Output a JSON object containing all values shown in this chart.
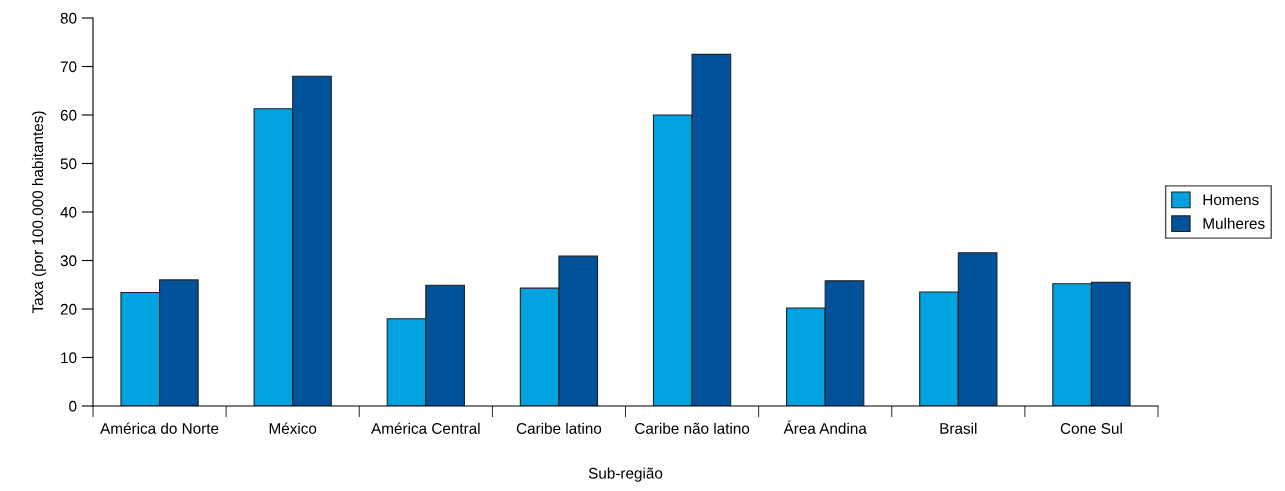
{
  "chart_data": {
    "type": "bar",
    "xlabel": "Sub-região",
    "ylabel": "Taxa (por 100.000 habitantes)",
    "categories": [
      "América do Norte",
      "México",
      "América Central",
      "Caribe latino",
      "Caribe não latino",
      "Área Andina",
      "Brasil",
      "Cone Sul"
    ],
    "series": [
      {
        "name": "Homens",
        "color": "#00a3e0",
        "values": [
          23.4,
          61.3,
          18.0,
          24.3,
          60.0,
          20.2,
          23.5,
          25.2
        ]
      },
      {
        "name": "Mulheres",
        "color": "#00529b",
        "values": [
          26.0,
          68.0,
          24.9,
          30.9,
          72.5,
          25.8,
          31.6,
          25.5
        ]
      }
    ],
    "ylim": [
      0,
      80
    ],
    "yticks": [
      0,
      10,
      20,
      30,
      40,
      50,
      60,
      70,
      80
    ],
    "grid": false,
    "legend": "right"
  }
}
